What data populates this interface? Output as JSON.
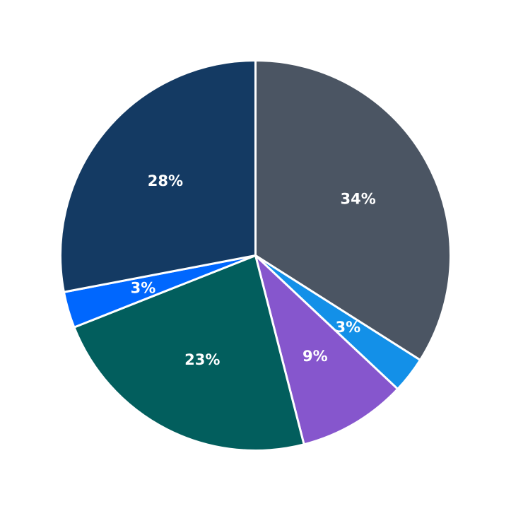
{
  "chart_data": {
    "type": "pie",
    "start_angle": "12 o'clock",
    "direction": "clockwise",
    "slices": [
      {
        "value": 34,
        "label": "34%",
        "color": "#4b5563"
      },
      {
        "value": 3,
        "label": "3%",
        "color": "#1390e8"
      },
      {
        "value": 9,
        "label": "9%",
        "color": "#8656cd"
      },
      {
        "value": 23,
        "label": "23%",
        "color": "#025e5d"
      },
      {
        "value": 3,
        "label": "3%",
        "color": "#0067fe"
      },
      {
        "value": 28,
        "label": "28%",
        "color": "#143a63"
      }
    ]
  }
}
